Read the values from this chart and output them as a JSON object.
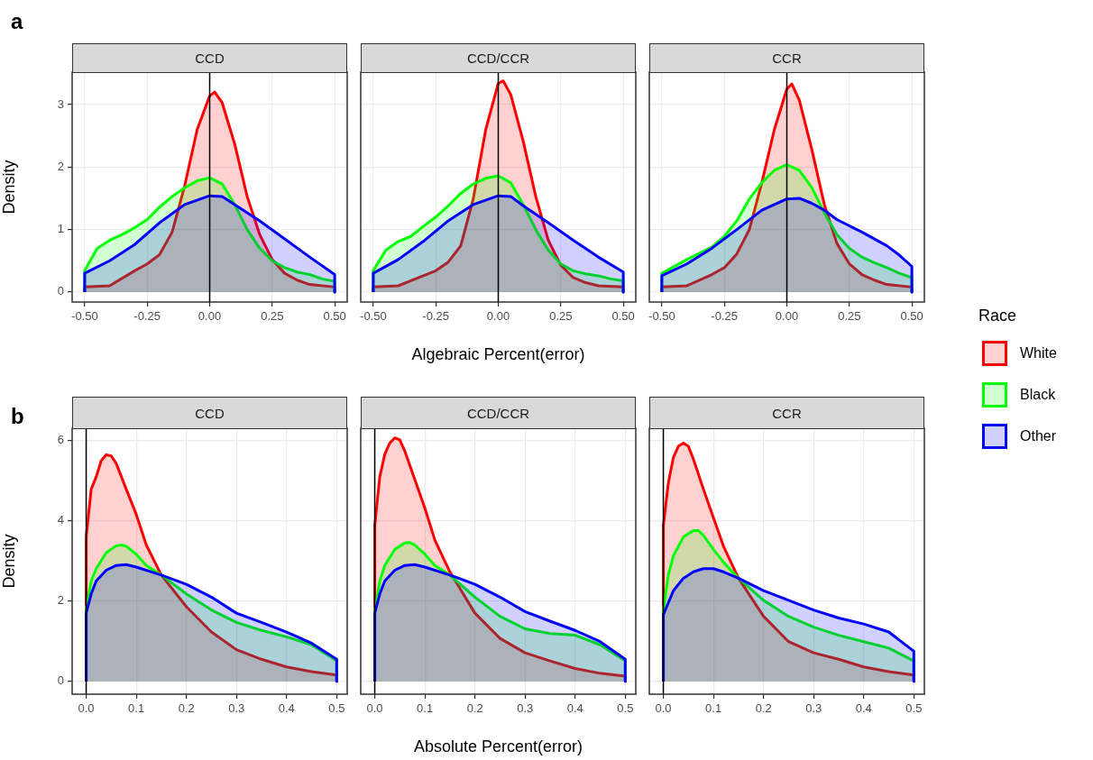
{
  "chart_data": [
    {
      "type": "area",
      "title": "CCD",
      "ylabel": "Density",
      "annotations": [
        "a"
      ],
      "xlim": [
        -0.55,
        0.55
      ],
      "ylim": [
        -0.16,
        3.52
      ],
      "xticks": [
        {
          "value": -0.5,
          "label": "-0.50"
        },
        {
          "value": -0.25,
          "label": "-0.25"
        },
        {
          "value": 0,
          "label": "0.00"
        },
        {
          "value": 0.25,
          "label": "0.25"
        },
        {
          "value": 0.5,
          "label": "0.50"
        }
      ],
      "yticks": [
        0,
        1,
        2,
        3
      ],
      "grid": true,
      "ref_lines": [
        {
          "axis": "x",
          "value": 0
        }
      ],
      "series": [
        {
          "color": "#ff0000",
          "x": [
            -0.5,
            -0.5,
            -0.4,
            -0.3,
            -0.25,
            -0.2,
            -0.15,
            -0.1,
            -0.05,
            0,
            0.02,
            0.05,
            0.1,
            0.15,
            0.2,
            0.25,
            0.3,
            0.35,
            0.4,
            0.5,
            0.5
          ],
          "values": [
            0,
            0.08,
            0.1,
            0.34,
            0.45,
            0.6,
            0.96,
            1.7,
            2.6,
            3.14,
            3.2,
            3.03,
            2.37,
            1.53,
            0.92,
            0.52,
            0.3,
            0.19,
            0.12,
            0.08,
            0
          ]
        },
        {
          "color": "#00ff00",
          "x": [
            -0.5,
            -0.5,
            -0.45,
            -0.4,
            -0.35,
            -0.3,
            -0.25,
            -0.2,
            -0.15,
            -0.1,
            -0.05,
            0,
            0.05,
            0.1,
            0.15,
            0.2,
            0.25,
            0.3,
            0.35,
            0.4,
            0.45,
            0.5,
            0.5
          ],
          "values": [
            0,
            0.34,
            0.7,
            0.83,
            0.92,
            1.03,
            1.16,
            1.36,
            1.53,
            1.67,
            1.78,
            1.83,
            1.73,
            1.4,
            1.0,
            0.7,
            0.5,
            0.39,
            0.32,
            0.28,
            0.21,
            0.17,
            0
          ]
        },
        {
          "color": "#0000ff",
          "x": [
            -0.5,
            -0.5,
            -0.4,
            -0.3,
            -0.2,
            -0.1,
            0,
            0.05,
            0.1,
            0.2,
            0.3,
            0.4,
            0.5,
            0.5
          ],
          "values": [
            0,
            0.3,
            0.5,
            0.76,
            1.11,
            1.4,
            1.54,
            1.53,
            1.4,
            1.14,
            0.85,
            0.56,
            0.28,
            0
          ]
        }
      ]
    },
    {
      "type": "area",
      "title": "CCD/CCR",
      "xlabel": "Algebraic Percent(error)",
      "tick_labels": "x",
      "xlim": [
        -0.55,
        0.55
      ],
      "ylim": [
        -0.16,
        3.52
      ],
      "xticks": [
        {
          "value": -0.5,
          "label": "-0.50"
        },
        {
          "value": -0.25,
          "label": "-0.25"
        },
        {
          "value": 0,
          "label": "0.00"
        },
        {
          "value": 0.25,
          "label": "0.25"
        },
        {
          "value": 0.5,
          "label": "0.50"
        }
      ],
      "yticks": [
        0,
        1,
        2,
        3
      ],
      "grid": true,
      "ref_lines": [
        {
          "axis": "x",
          "value": 0
        }
      ],
      "series": [
        {
          "color": "#ff0000",
          "x": [
            -0.5,
            -0.5,
            -0.4,
            -0.3,
            -0.25,
            -0.2,
            -0.15,
            -0.1,
            -0.05,
            0,
            0.02,
            0.05,
            0.1,
            0.15,
            0.2,
            0.25,
            0.3,
            0.35,
            0.4,
            0.5,
            0.5
          ],
          "values": [
            0,
            0.08,
            0.1,
            0.26,
            0.34,
            0.48,
            0.74,
            1.49,
            2.6,
            3.34,
            3.38,
            3.16,
            2.41,
            1.53,
            0.83,
            0.43,
            0.23,
            0.15,
            0.1,
            0.08,
            0
          ]
        },
        {
          "color": "#00ff00",
          "x": [
            -0.5,
            -0.5,
            -0.45,
            -0.4,
            -0.35,
            -0.3,
            -0.25,
            -0.2,
            -0.15,
            -0.1,
            -0.05,
            0,
            0.05,
            0.1,
            0.15,
            0.2,
            0.25,
            0.3,
            0.35,
            0.4,
            0.45,
            0.5,
            0.5
          ],
          "values": [
            0,
            0.34,
            0.67,
            0.81,
            0.89,
            1.05,
            1.2,
            1.38,
            1.58,
            1.73,
            1.82,
            1.86,
            1.75,
            1.4,
            1.0,
            0.67,
            0.45,
            0.34,
            0.29,
            0.26,
            0.21,
            0.18,
            0
          ]
        },
        {
          "color": "#0000ff",
          "x": [
            -0.5,
            -0.5,
            -0.4,
            -0.3,
            -0.2,
            -0.1,
            0,
            0.05,
            0.1,
            0.2,
            0.3,
            0.4,
            0.5,
            0.5
          ],
          "values": [
            0,
            0.3,
            0.52,
            0.81,
            1.14,
            1.4,
            1.54,
            1.53,
            1.38,
            1.11,
            0.83,
            0.56,
            0.32,
            0
          ]
        }
      ]
    },
    {
      "type": "area",
      "title": "CCR",
      "legend": "right",
      "legend_title": "Race",
      "tick_labels": "x",
      "xlim": [
        -0.55,
        0.55
      ],
      "ylim": [
        -0.16,
        3.52
      ],
      "xticks": [
        {
          "value": -0.5,
          "label": "-0.50"
        },
        {
          "value": -0.25,
          "label": "-0.25"
        },
        {
          "value": 0,
          "label": "0.00"
        },
        {
          "value": 0.25,
          "label": "0.25"
        },
        {
          "value": 0.5,
          "label": "0.50"
        }
      ],
      "yticks": [
        0,
        1,
        2,
        3
      ],
      "grid": true,
      "ref_lines": [
        {
          "axis": "x",
          "value": 0
        }
      ],
      "series": [
        {
          "name": "White",
          "color": "#ff0000",
          "x": [
            -0.5,
            -0.5,
            -0.4,
            -0.3,
            -0.25,
            -0.2,
            -0.15,
            -0.1,
            -0.05,
            0,
            0.02,
            0.05,
            0.1,
            0.15,
            0.2,
            0.25,
            0.3,
            0.35,
            0.4,
            0.5,
            0.5
          ],
          "values": [
            0,
            0.08,
            0.1,
            0.28,
            0.39,
            0.61,
            1.0,
            1.75,
            2.6,
            3.25,
            3.33,
            3.07,
            2.28,
            1.4,
            0.78,
            0.45,
            0.28,
            0.19,
            0.12,
            0.08,
            0
          ]
        },
        {
          "name": "Black",
          "color": "#00ff00",
          "x": [
            -0.5,
            -0.5,
            -0.4,
            -0.3,
            -0.25,
            -0.2,
            -0.15,
            -0.1,
            -0.05,
            0,
            0.05,
            0.1,
            0.15,
            0.2,
            0.25,
            0.3,
            0.35,
            0.4,
            0.45,
            0.5,
            0.5
          ],
          "values": [
            0,
            0.3,
            0.52,
            0.72,
            0.89,
            1.14,
            1.49,
            1.75,
            1.95,
            2.04,
            1.95,
            1.67,
            1.27,
            0.92,
            0.7,
            0.56,
            0.47,
            0.39,
            0.3,
            0.23,
            0
          ]
        },
        {
          "name": "Other",
          "color": "#0000ff",
          "x": [
            -0.5,
            -0.5,
            -0.4,
            -0.3,
            -0.2,
            -0.1,
            0,
            0.05,
            0.1,
            0.15,
            0.2,
            0.3,
            0.4,
            0.45,
            0.5,
            0.5
          ],
          "values": [
            0,
            0.26,
            0.45,
            0.7,
            1.0,
            1.31,
            1.49,
            1.5,
            1.42,
            1.31,
            1.16,
            0.96,
            0.74,
            0.59,
            0.41,
            0
          ]
        }
      ]
    },
    {
      "type": "area",
      "title": "CCD",
      "ylabel": "Density",
      "annotations": [
        "b"
      ],
      "xlim": [
        -0.028,
        0.521
      ],
      "ylim": [
        -0.32,
        6.31
      ],
      "xticks": [
        {
          "value": 0,
          "label": "0.0"
        },
        0.1,
        0.2,
        0.3,
        0.4,
        0.5
      ],
      "yticks": [
        0,
        2,
        4,
        6
      ],
      "grid": true,
      "ref_lines": [
        {
          "axis": "x",
          "value": 0
        }
      ],
      "series": [
        {
          "color": "#ff0000",
          "x": [
            0,
            0,
            0.01,
            0.02,
            0.03,
            0.04,
            0.05,
            0.06,
            0.08,
            0.1,
            0.12,
            0.15,
            0.2,
            0.25,
            0.3,
            0.35,
            0.4,
            0.45,
            0.5,
            0.5
          ],
          "values": [
            0,
            3.6,
            4.79,
            5.1,
            5.5,
            5.65,
            5.62,
            5.43,
            4.79,
            4.16,
            3.4,
            2.65,
            1.86,
            1.23,
            0.79,
            0.55,
            0.36,
            0.24,
            0.16,
            0
          ]
        },
        {
          "color": "#00ff00",
          "x": [
            0,
            0,
            0.01,
            0.02,
            0.04,
            0.06,
            0.07,
            0.08,
            0.1,
            0.12,
            0.15,
            0.2,
            0.25,
            0.3,
            0.35,
            0.4,
            0.45,
            0.5,
            0.5
          ],
          "values": [
            0,
            1.82,
            2.5,
            2.81,
            3.21,
            3.38,
            3.4,
            3.37,
            3.17,
            2.89,
            2.65,
            2.18,
            1.78,
            1.47,
            1.27,
            1.11,
            0.91,
            0.51,
            0
          ]
        },
        {
          "color": "#0000ff",
          "x": [
            0,
            0,
            0.01,
            0.02,
            0.04,
            0.06,
            0.08,
            0.1,
            0.15,
            0.2,
            0.25,
            0.3,
            0.35,
            0.4,
            0.45,
            0.5,
            0.5
          ],
          "values": [
            0,
            1.7,
            2.18,
            2.5,
            2.77,
            2.89,
            2.91,
            2.85,
            2.65,
            2.42,
            2.1,
            1.7,
            1.47,
            1.23,
            0.95,
            0.55,
            0
          ]
        }
      ]
    },
    {
      "type": "area",
      "title": "CCD/CCR",
      "xlabel": "Absolute Percent(error)",
      "tick_labels": "x",
      "xlim": [
        -0.028,
        0.521
      ],
      "ylim": [
        -0.32,
        6.31
      ],
      "xticks": [
        {
          "value": 0,
          "label": "0.0"
        },
        0.1,
        0.2,
        0.3,
        0.4,
        0.5
      ],
      "yticks": [
        0,
        2,
        4,
        6
      ],
      "grid": true,
      "ref_lines": [
        {
          "axis": "x",
          "value": 0
        }
      ],
      "series": [
        {
          "color": "#ff0000",
          "x": [
            0,
            0,
            0.01,
            0.02,
            0.03,
            0.04,
            0.05,
            0.06,
            0.08,
            0.1,
            0.12,
            0.15,
            0.2,
            0.25,
            0.3,
            0.35,
            0.4,
            0.45,
            0.5,
            0.5
          ],
          "values": [
            0,
            3.88,
            5.1,
            5.66,
            5.94,
            6.07,
            6.02,
            5.74,
            5.03,
            4.32,
            3.52,
            2.73,
            1.7,
            1.07,
            0.71,
            0.51,
            0.32,
            0.2,
            0.13,
            0
          ]
        },
        {
          "color": "#00ff00",
          "x": [
            0,
            0,
            0.01,
            0.02,
            0.04,
            0.06,
            0.07,
            0.08,
            0.1,
            0.12,
            0.15,
            0.2,
            0.25,
            0.3,
            0.35,
            0.4,
            0.45,
            0.5,
            0.5
          ],
          "values": [
            0,
            1.78,
            2.5,
            2.89,
            3.29,
            3.45,
            3.46,
            3.4,
            3.17,
            2.89,
            2.65,
            2.1,
            1.62,
            1.31,
            1.19,
            1.15,
            0.91,
            0.51,
            0
          ]
        },
        {
          "color": "#0000ff",
          "x": [
            0,
            0,
            0.01,
            0.02,
            0.04,
            0.06,
            0.08,
            0.1,
            0.15,
            0.2,
            0.25,
            0.3,
            0.35,
            0.4,
            0.45,
            0.5,
            0.5
          ],
          "values": [
            0,
            1.7,
            2.18,
            2.5,
            2.77,
            2.89,
            2.91,
            2.85,
            2.65,
            2.42,
            2.1,
            1.74,
            1.5,
            1.27,
            0.99,
            0.55,
            0
          ]
        }
      ]
    },
    {
      "type": "area",
      "title": "CCR",
      "tick_labels": "x",
      "xlim": [
        -0.028,
        0.521
      ],
      "ylim": [
        -0.32,
        6.31
      ],
      "xticks": [
        {
          "value": 0,
          "label": "0.0"
        },
        0.1,
        0.2,
        0.3,
        0.4,
        0.5
      ],
      "yticks": [
        0,
        2,
        4,
        6
      ],
      "grid": true,
      "ref_lines": [
        {
          "axis": "x",
          "value": 0
        }
      ],
      "series": [
        {
          "color": "#ff0000",
          "x": [
            0,
            0,
            0.01,
            0.02,
            0.03,
            0.04,
            0.05,
            0.06,
            0.08,
            0.1,
            0.12,
            0.15,
            0.2,
            0.25,
            0.3,
            0.35,
            0.4,
            0.45,
            0.5,
            0.5
          ],
          "values": [
            0,
            3.88,
            4.95,
            5.58,
            5.86,
            5.94,
            5.86,
            5.54,
            4.79,
            4.08,
            3.37,
            2.57,
            1.62,
            0.99,
            0.71,
            0.55,
            0.36,
            0.24,
            0.16,
            0
          ]
        },
        {
          "color": "#00ff00",
          "x": [
            0,
            0,
            0.01,
            0.02,
            0.04,
            0.06,
            0.07,
            0.08,
            0.1,
            0.12,
            0.15,
            0.2,
            0.25,
            0.3,
            0.35,
            0.4,
            0.45,
            0.5,
            0.5
          ],
          "values": [
            0,
            1.78,
            2.65,
            3.13,
            3.6,
            3.76,
            3.76,
            3.64,
            3.29,
            2.97,
            2.57,
            2.02,
            1.62,
            1.35,
            1.15,
            0.99,
            0.83,
            0.51,
            0
          ]
        },
        {
          "color": "#0000ff",
          "x": [
            0,
            0,
            0.02,
            0.04,
            0.06,
            0.08,
            0.1,
            0.12,
            0.15,
            0.2,
            0.25,
            0.3,
            0.35,
            0.4,
            0.45,
            0.5,
            0.5
          ],
          "values": [
            0,
            1.66,
            2.26,
            2.57,
            2.73,
            2.81,
            2.81,
            2.73,
            2.57,
            2.26,
            2.02,
            1.78,
            1.58,
            1.43,
            1.23,
            0.75,
            0
          ]
        }
      ]
    }
  ]
}
